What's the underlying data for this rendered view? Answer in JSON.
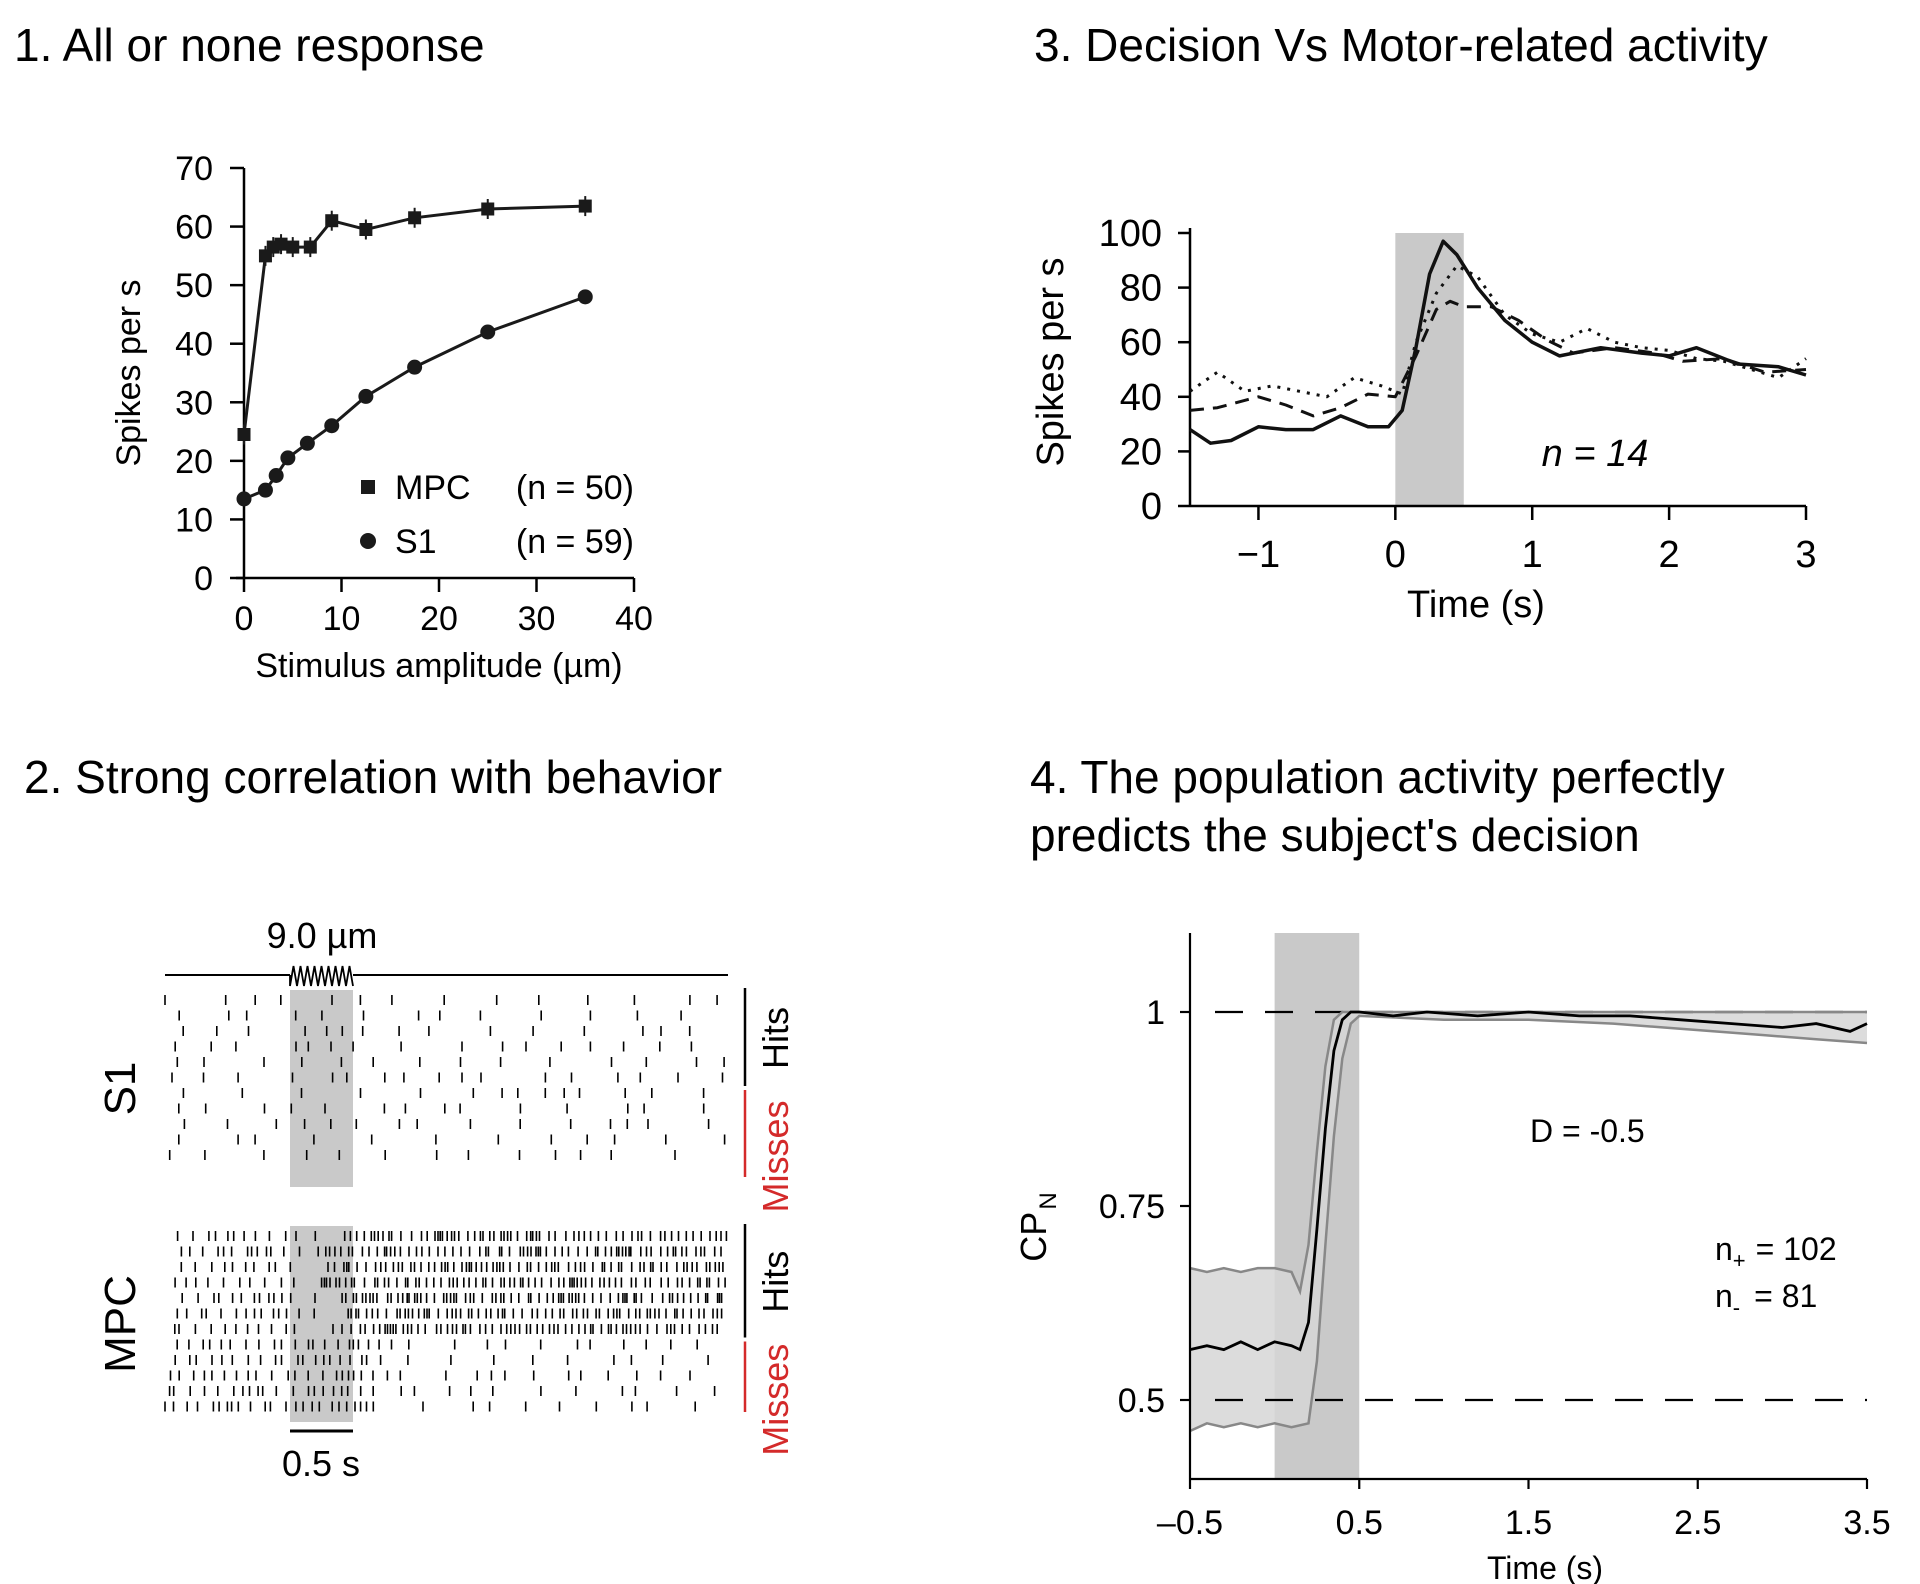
{
  "panels": {
    "p1_title": "1. All or none response",
    "p2_title": "2. Strong correlation with behavior",
    "p3_title": "3. Decision Vs Motor-related activity",
    "p4_title": "4. The population activity perfectly\npredicts the subject's decision"
  },
  "chart_data": [
    {
      "type": "line",
      "xlabel": "Stimulus amplitude (µm)",
      "ylabel": "Spikes per s",
      "xlim": [
        0,
        40
      ],
      "ylim": [
        0,
        70
      ],
      "xticks": [
        0,
        10,
        20,
        30,
        40
      ],
      "yticks": [
        0,
        10,
        20,
        30,
        40,
        50,
        60,
        70
      ],
      "legend_position": "bottom-right",
      "series": [
        {
          "name": "MPC",
          "n_label": "(n = 50)",
          "marker": "square",
          "x": [
            0,
            2.2,
            3,
            3.8,
            5,
            6.8,
            9,
            12.5,
            17.5,
            25,
            35
          ],
          "y": [
            24.5,
            55,
            56.5,
            57,
            56.5,
            56.5,
            61,
            59.5,
            61.5,
            63,
            63.5
          ]
        },
        {
          "name": "S1",
          "n_label": "(n = 59)",
          "marker": "circle",
          "x": [
            0,
            2.2,
            3.3,
            4.5,
            6.5,
            9,
            12.5,
            17.5,
            25,
            35
          ],
          "y": [
            13.5,
            15,
            17.5,
            20.5,
            23,
            26,
            31,
            36,
            42,
            48
          ]
        }
      ]
    },
    {
      "type": "raster",
      "stim_label": "9.0 µm",
      "scale_label": "0.5 s",
      "groups": [
        {
          "name": "S1",
          "hits_label": "Hits",
          "misses_label": "Misses",
          "hit_rows": 6,
          "miss_rows": 5,
          "firing": "sparse"
        },
        {
          "name": "MPC",
          "hits_label": "Hits",
          "misses_label": "Misses",
          "hit_rows": 7,
          "miss_rows": 5,
          "firing": "dense-after-stimulus-on-hits"
        }
      ]
    },
    {
      "type": "line",
      "xlabel": "Time (s)",
      "ylabel": "Spikes per s",
      "xlim": [
        -1.5,
        3
      ],
      "ylim": [
        0,
        100
      ],
      "xticks": [
        -1,
        0,
        1,
        2,
        3
      ],
      "xtick_labels": [
        "−1",
        "0",
        "1",
        "2",
        "3"
      ],
      "yticks": [
        0,
        20,
        40,
        60,
        80,
        100
      ],
      "shaded_interval": [
        0,
        0.5
      ],
      "annotation": "n = 14",
      "series": [
        {
          "style": "solid",
          "x": [
            -1.5,
            -1.35,
            -1.2,
            -1.0,
            -0.8,
            -0.6,
            -0.4,
            -0.2,
            -0.05,
            0.05,
            0.15,
            0.25,
            0.35,
            0.45,
            0.6,
            0.8,
            1.0,
            1.2,
            1.5,
            1.8,
            2.0,
            2.2,
            2.5,
            2.8,
            3.0
          ],
          "y": [
            28,
            23,
            24,
            29,
            28,
            28,
            33,
            29,
            29,
            35,
            58,
            85,
            97,
            92,
            80,
            68,
            60,
            55,
            58,
            56,
            55,
            58,
            52,
            51,
            48
          ]
        },
        {
          "style": "dashed",
          "x": [
            -1.5,
            -1.3,
            -1.0,
            -0.8,
            -0.6,
            -0.4,
            -0.2,
            0.0,
            0.15,
            0.3,
            0.4,
            0.5,
            0.7,
            0.9,
            1.1,
            1.3,
            1.6,
            1.9,
            2.1,
            2.4,
            2.7,
            3.0
          ],
          "y": [
            35,
            36,
            40,
            37,
            33,
            36,
            41,
            40,
            55,
            72,
            75,
            73,
            73,
            68,
            61,
            56,
            58,
            56,
            53,
            54,
            49,
            50
          ]
        },
        {
          "style": "dotted",
          "x": [
            -1.5,
            -1.3,
            -1.1,
            -0.9,
            -0.7,
            -0.5,
            -0.3,
            -0.1,
            0.05,
            0.15,
            0.3,
            0.45,
            0.6,
            0.8,
            1.0,
            1.2,
            1.4,
            1.6,
            1.8,
            2.0,
            2.2,
            2.4,
            2.6,
            2.8,
            3.0
          ],
          "y": [
            42,
            49,
            42,
            44,
            42,
            40,
            47,
            44,
            41,
            60,
            78,
            88,
            84,
            70,
            63,
            60,
            65,
            60,
            58,
            57,
            54,
            53,
            50,
            47,
            54
          ]
        }
      ]
    },
    {
      "type": "line",
      "xlabel": "Time (s)",
      "ylabel": "CPN",
      "xlim": [
        -0.5,
        3.5
      ],
      "ylim": [
        0.4,
        1.1
      ],
      "xticks": [
        -0.5,
        0.5,
        1.5,
        2.5,
        3.5
      ],
      "xtick_labels": [
        "–0.5",
        "0.5",
        "1.5",
        "2.5",
        "3.5"
      ],
      "yticks": [
        0.5,
        0.75,
        1
      ],
      "ytick_labels": [
        "0.5",
        "0.75",
        "1"
      ],
      "shaded_interval": [
        0,
        0.5
      ],
      "reference_lines": [
        1,
        0.5
      ],
      "annotations": {
        "d": "D = -0.5",
        "n_plus": "102",
        "n_minus": "81"
      },
      "series": [
        {
          "name": "mean",
          "color": "#000000",
          "x": [
            -0.5,
            -0.4,
            -0.3,
            -0.2,
            -0.1,
            0.0,
            0.1,
            0.15,
            0.2,
            0.25,
            0.3,
            0.35,
            0.4,
            0.45,
            0.5,
            0.7,
            0.9,
            1.2,
            1.5,
            1.8,
            2.1,
            2.4,
            2.7,
            3.0,
            3.2,
            3.4,
            3.5
          ],
          "y": [
            0.565,
            0.57,
            0.565,
            0.575,
            0.565,
            0.575,
            0.57,
            0.565,
            0.6,
            0.72,
            0.85,
            0.95,
            0.99,
            1.0,
            1.0,
            0.995,
            1.0,
            0.995,
            1.0,
            0.995,
            0.995,
            0.99,
            0.985,
            0.98,
            0.985,
            0.975,
            0.985
          ]
        },
        {
          "name": "upper band",
          "color": "#888888",
          "x": [
            -0.5,
            -0.4,
            -0.3,
            -0.2,
            -0.1,
            0.0,
            0.1,
            0.15,
            0.2,
            0.25,
            0.3,
            0.35,
            0.4,
            0.45,
            0.5,
            1.0,
            1.5,
            2.0,
            2.5,
            3.0,
            3.5
          ],
          "y": [
            0.67,
            0.665,
            0.67,
            0.665,
            0.67,
            0.67,
            0.665,
            0.64,
            0.7,
            0.82,
            0.93,
            0.99,
            1.0,
            1.0,
            1.0,
            1.0,
            1.0,
            1.0,
            1.0,
            1.0,
            1.0
          ]
        },
        {
          "name": "lower band",
          "color": "#888888",
          "x": [
            -0.5,
            -0.4,
            -0.3,
            -0.2,
            -0.1,
            0.0,
            0.1,
            0.2,
            0.25,
            0.3,
            0.35,
            0.4,
            0.45,
            0.5,
            1.0,
            1.5,
            2.0,
            2.3,
            2.6,
            2.9,
            3.2,
            3.5
          ],
          "y": [
            0.46,
            0.47,
            0.465,
            0.47,
            0.465,
            0.47,
            0.465,
            0.47,
            0.55,
            0.7,
            0.84,
            0.94,
            0.985,
            0.995,
            0.99,
            0.99,
            0.985,
            0.98,
            0.975,
            0.97,
            0.965,
            0.96
          ]
        }
      ]
    }
  ]
}
